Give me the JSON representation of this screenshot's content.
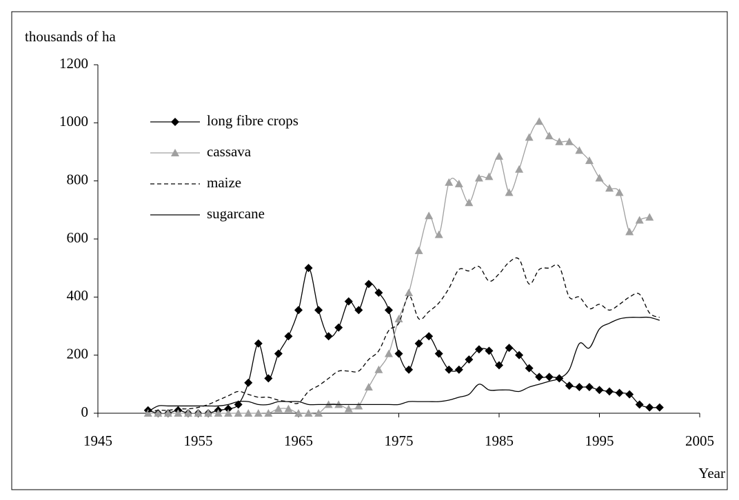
{
  "chart_data": {
    "type": "line",
    "y_label": "thousands of ha",
    "x_label": "Year",
    "xlim": [
      1945,
      2005
    ],
    "xticks": [
      1945,
      1955,
      1965,
      1975,
      1985,
      1995,
      2005
    ],
    "ylim": [
      0,
      1200
    ],
    "yticks": [
      0,
      200,
      400,
      600,
      800,
      1000,
      1200
    ],
    "legend": "upper left",
    "series": [
      {
        "name": "long fibre crops",
        "color": "#000000",
        "marker": "diamond",
        "dash": false,
        "x": [
          1950,
          1951,
          1952,
          1953,
          1954,
          1955,
          1956,
          1957,
          1958,
          1959,
          1960,
          1961,
          1962,
          1963,
          1964,
          1965,
          1966,
          1967,
          1968,
          1969,
          1970,
          1971,
          1972,
          1973,
          1974,
          1975,
          1976,
          1977,
          1978,
          1979,
          1980,
          1981,
          1982,
          1983,
          1984,
          1985,
          1986,
          1987,
          1988,
          1989,
          1990,
          1991,
          1992,
          1993,
          1994,
          1995,
          1996,
          1997,
          1998,
          1999,
          2000,
          2001
        ],
        "values": [
          10,
          0,
          0,
          10,
          0,
          0,
          0,
          10,
          15,
          30,
          105,
          240,
          120,
          205,
          265,
          355,
          500,
          355,
          265,
          295,
          385,
          355,
          445,
          415,
          355,
          205,
          150,
          240,
          265,
          205,
          150,
          150,
          185,
          220,
          215,
          165,
          225,
          200,
          155,
          125,
          125,
          120,
          95,
          90,
          90,
          80,
          75,
          70,
          65,
          30,
          20,
          20
        ]
      },
      {
        "name": "cassava",
        "color": "#a0a0a0",
        "marker": "triangle",
        "dash": false,
        "x": [
          1950,
          1951,
          1952,
          1953,
          1954,
          1955,
          1956,
          1957,
          1958,
          1959,
          1960,
          1961,
          1962,
          1963,
          1964,
          1965,
          1966,
          1967,
          1968,
          1969,
          1970,
          1971,
          1972,
          1973,
          1974,
          1975,
          1976,
          1977,
          1978,
          1979,
          1980,
          1981,
          1982,
          1983,
          1984,
          1985,
          1986,
          1987,
          1988,
          1989,
          1990,
          1991,
          1992,
          1993,
          1994,
          1995,
          1996,
          1997,
          1998,
          1999,
          2000
        ],
        "values": [
          0,
          0,
          0,
          0,
          0,
          0,
          0,
          0,
          0,
          0,
          0,
          0,
          0,
          15,
          15,
          0,
          0,
          0,
          30,
          30,
          15,
          25,
          90,
          150,
          205,
          325,
          415,
          560,
          680,
          615,
          795,
          790,
          725,
          810,
          815,
          885,
          760,
          840,
          950,
          1005,
          955,
          935,
          935,
          905,
          870,
          810,
          775,
          760,
          625,
          665,
          675
        ]
      },
      {
        "name": "maize",
        "color": "#000000",
        "marker": "none",
        "dash": true,
        "x": [
          1950,
          1951,
          1952,
          1953,
          1954,
          1955,
          1956,
          1957,
          1958,
          1959,
          1960,
          1961,
          1962,
          1963,
          1964,
          1965,
          1966,
          1967,
          1968,
          1969,
          1970,
          1971,
          1972,
          1973,
          1974,
          1975,
          1976,
          1977,
          1978,
          1979,
          1980,
          1981,
          1982,
          1983,
          1984,
          1985,
          1986,
          1987,
          1988,
          1989,
          1990,
          1991,
          1992,
          1993,
          1994,
          1995,
          1996,
          1997,
          1998,
          1999,
          2000,
          2001
        ],
        "values": [
          5,
          10,
          10,
          15,
          15,
          20,
          30,
          45,
          60,
          75,
          65,
          55,
          55,
          45,
          40,
          35,
          75,
          95,
          120,
          145,
          145,
          145,
          185,
          215,
          285,
          310,
          405,
          325,
          350,
          380,
          430,
          495,
          490,
          505,
          455,
          480,
          520,
          530,
          445,
          495,
          500,
          505,
          400,
          400,
          360,
          375,
          355,
          375,
          400,
          410,
          345,
          330
        ]
      },
      {
        "name": "sugarcane",
        "color": "#000000",
        "marker": "none",
        "dash": false,
        "x": [
          1950,
          1951,
          1952,
          1953,
          1954,
          1955,
          1956,
          1957,
          1958,
          1959,
          1960,
          1961,
          1962,
          1963,
          1964,
          1965,
          1966,
          1967,
          1968,
          1969,
          1970,
          1971,
          1972,
          1973,
          1974,
          1975,
          1976,
          1977,
          1978,
          1979,
          1980,
          1981,
          1982,
          1983,
          1984,
          1985,
          1986,
          1987,
          1988,
          1989,
          1990,
          1991,
          1992,
          1993,
          1994,
          1995,
          1996,
          1997,
          1998,
          1999,
          2000,
          2001
        ],
        "values": [
          5,
          25,
          25,
          25,
          25,
          25,
          25,
          25,
          30,
          40,
          40,
          30,
          30,
          40,
          40,
          40,
          30,
          30,
          30,
          30,
          30,
          30,
          30,
          30,
          30,
          30,
          40,
          40,
          40,
          40,
          45,
          55,
          65,
          100,
          80,
          80,
          80,
          75,
          90,
          100,
          110,
          120,
          150,
          240,
          225,
          290,
          310,
          325,
          330,
          330,
          330,
          320
        ]
      }
    ]
  }
}
